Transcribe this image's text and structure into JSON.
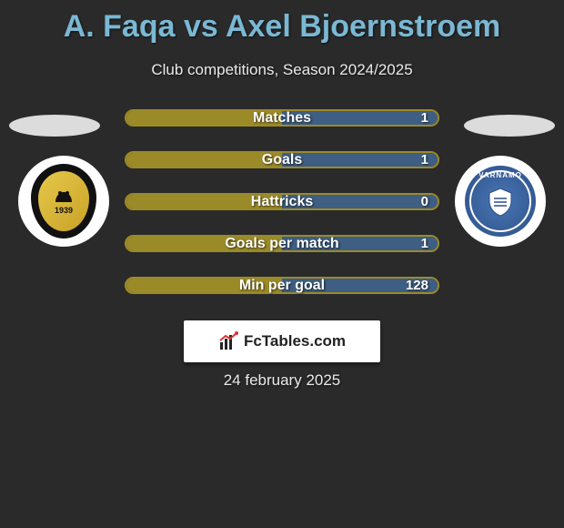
{
  "title": "A. Faqa vs Axel Bjoernstroem",
  "subtitle": "Club competitions, Season 2024/2025",
  "date": "24 february 2025",
  "branding": {
    "text": "FcTables.com"
  },
  "left_club": {
    "badge_text_top": "",
    "badge_year": "1939"
  },
  "right_club": {
    "arc_text": "VARNAMO"
  },
  "colors": {
    "title": "#7ab8d4",
    "bg": "#2a2a2a",
    "left_fill": "#9b8a28",
    "right_fill": "#3e5e83",
    "border": "#9b8a28"
  },
  "stats": [
    {
      "label": "Matches",
      "left_pct": 50,
      "right_val": "1"
    },
    {
      "label": "Goals",
      "left_pct": 50,
      "right_val": "1"
    },
    {
      "label": "Hattricks",
      "left_pct": 50,
      "right_val": "0"
    },
    {
      "label": "Goals per match",
      "left_pct": 50,
      "right_val": "1"
    },
    {
      "label": "Min per goal",
      "left_pct": 50,
      "right_val": "128"
    }
  ]
}
